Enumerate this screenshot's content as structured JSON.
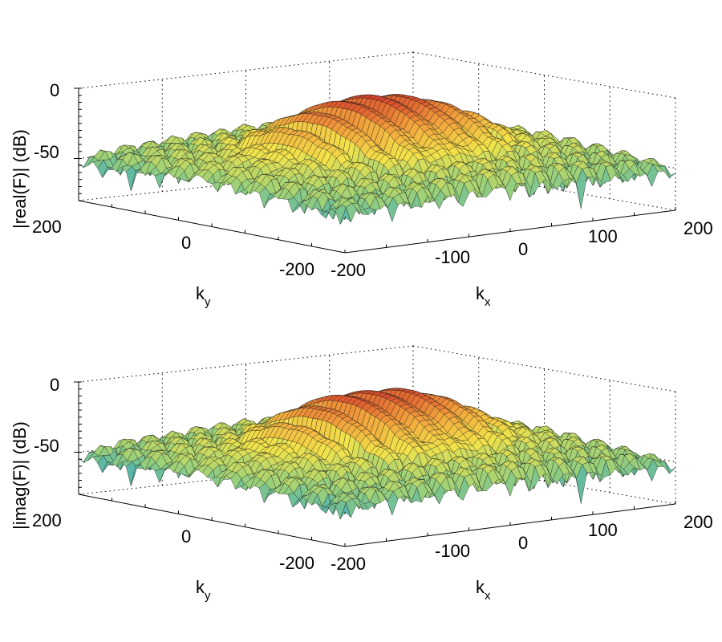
{
  "chart_data": [
    {
      "type": "surface",
      "panel": "top",
      "zlabel": "|real(F)| (dB)",
      "xlabel_base": "k",
      "xlabel_sub": "x",
      "ylabel_base": "k",
      "ylabel_sub": "y",
      "zticks": [
        "0",
        "-50"
      ],
      "xticks": [
        "-200",
        "-100",
        "0",
        "100",
        "200"
      ],
      "yticks": [
        "200",
        "0",
        "-200"
      ],
      "xlim": [
        -200,
        200
      ],
      "ylim": [
        -200,
        200
      ],
      "zlim": [
        -80,
        0
      ],
      "mainlobe_peaks": 4,
      "floor_db": -55,
      "colormap": [
        "#1f9fd0",
        "#9ad07a",
        "#f2e34a",
        "#f2a23c",
        "#d63a2a"
      ]
    },
    {
      "type": "surface",
      "panel": "bottom",
      "zlabel": "|imag(F)| (dB)",
      "xlabel_base": "k",
      "xlabel_sub": "x",
      "ylabel_base": "k",
      "ylabel_sub": "y",
      "zticks": [
        "0",
        "-50"
      ],
      "xticks": [
        "-200",
        "-100",
        "0",
        "100",
        "200"
      ],
      "yticks": [
        "200",
        "0",
        "-200"
      ],
      "xlim": [
        -200,
        200
      ],
      "ylim": [
        -200,
        200
      ],
      "zlim": [
        -80,
        0
      ],
      "mainlobe_peaks": 4,
      "floor_db": -55,
      "colormap": [
        "#1f9fd0",
        "#9ad07a",
        "#f2e34a",
        "#f2a23c",
        "#d63a2a"
      ]
    }
  ]
}
